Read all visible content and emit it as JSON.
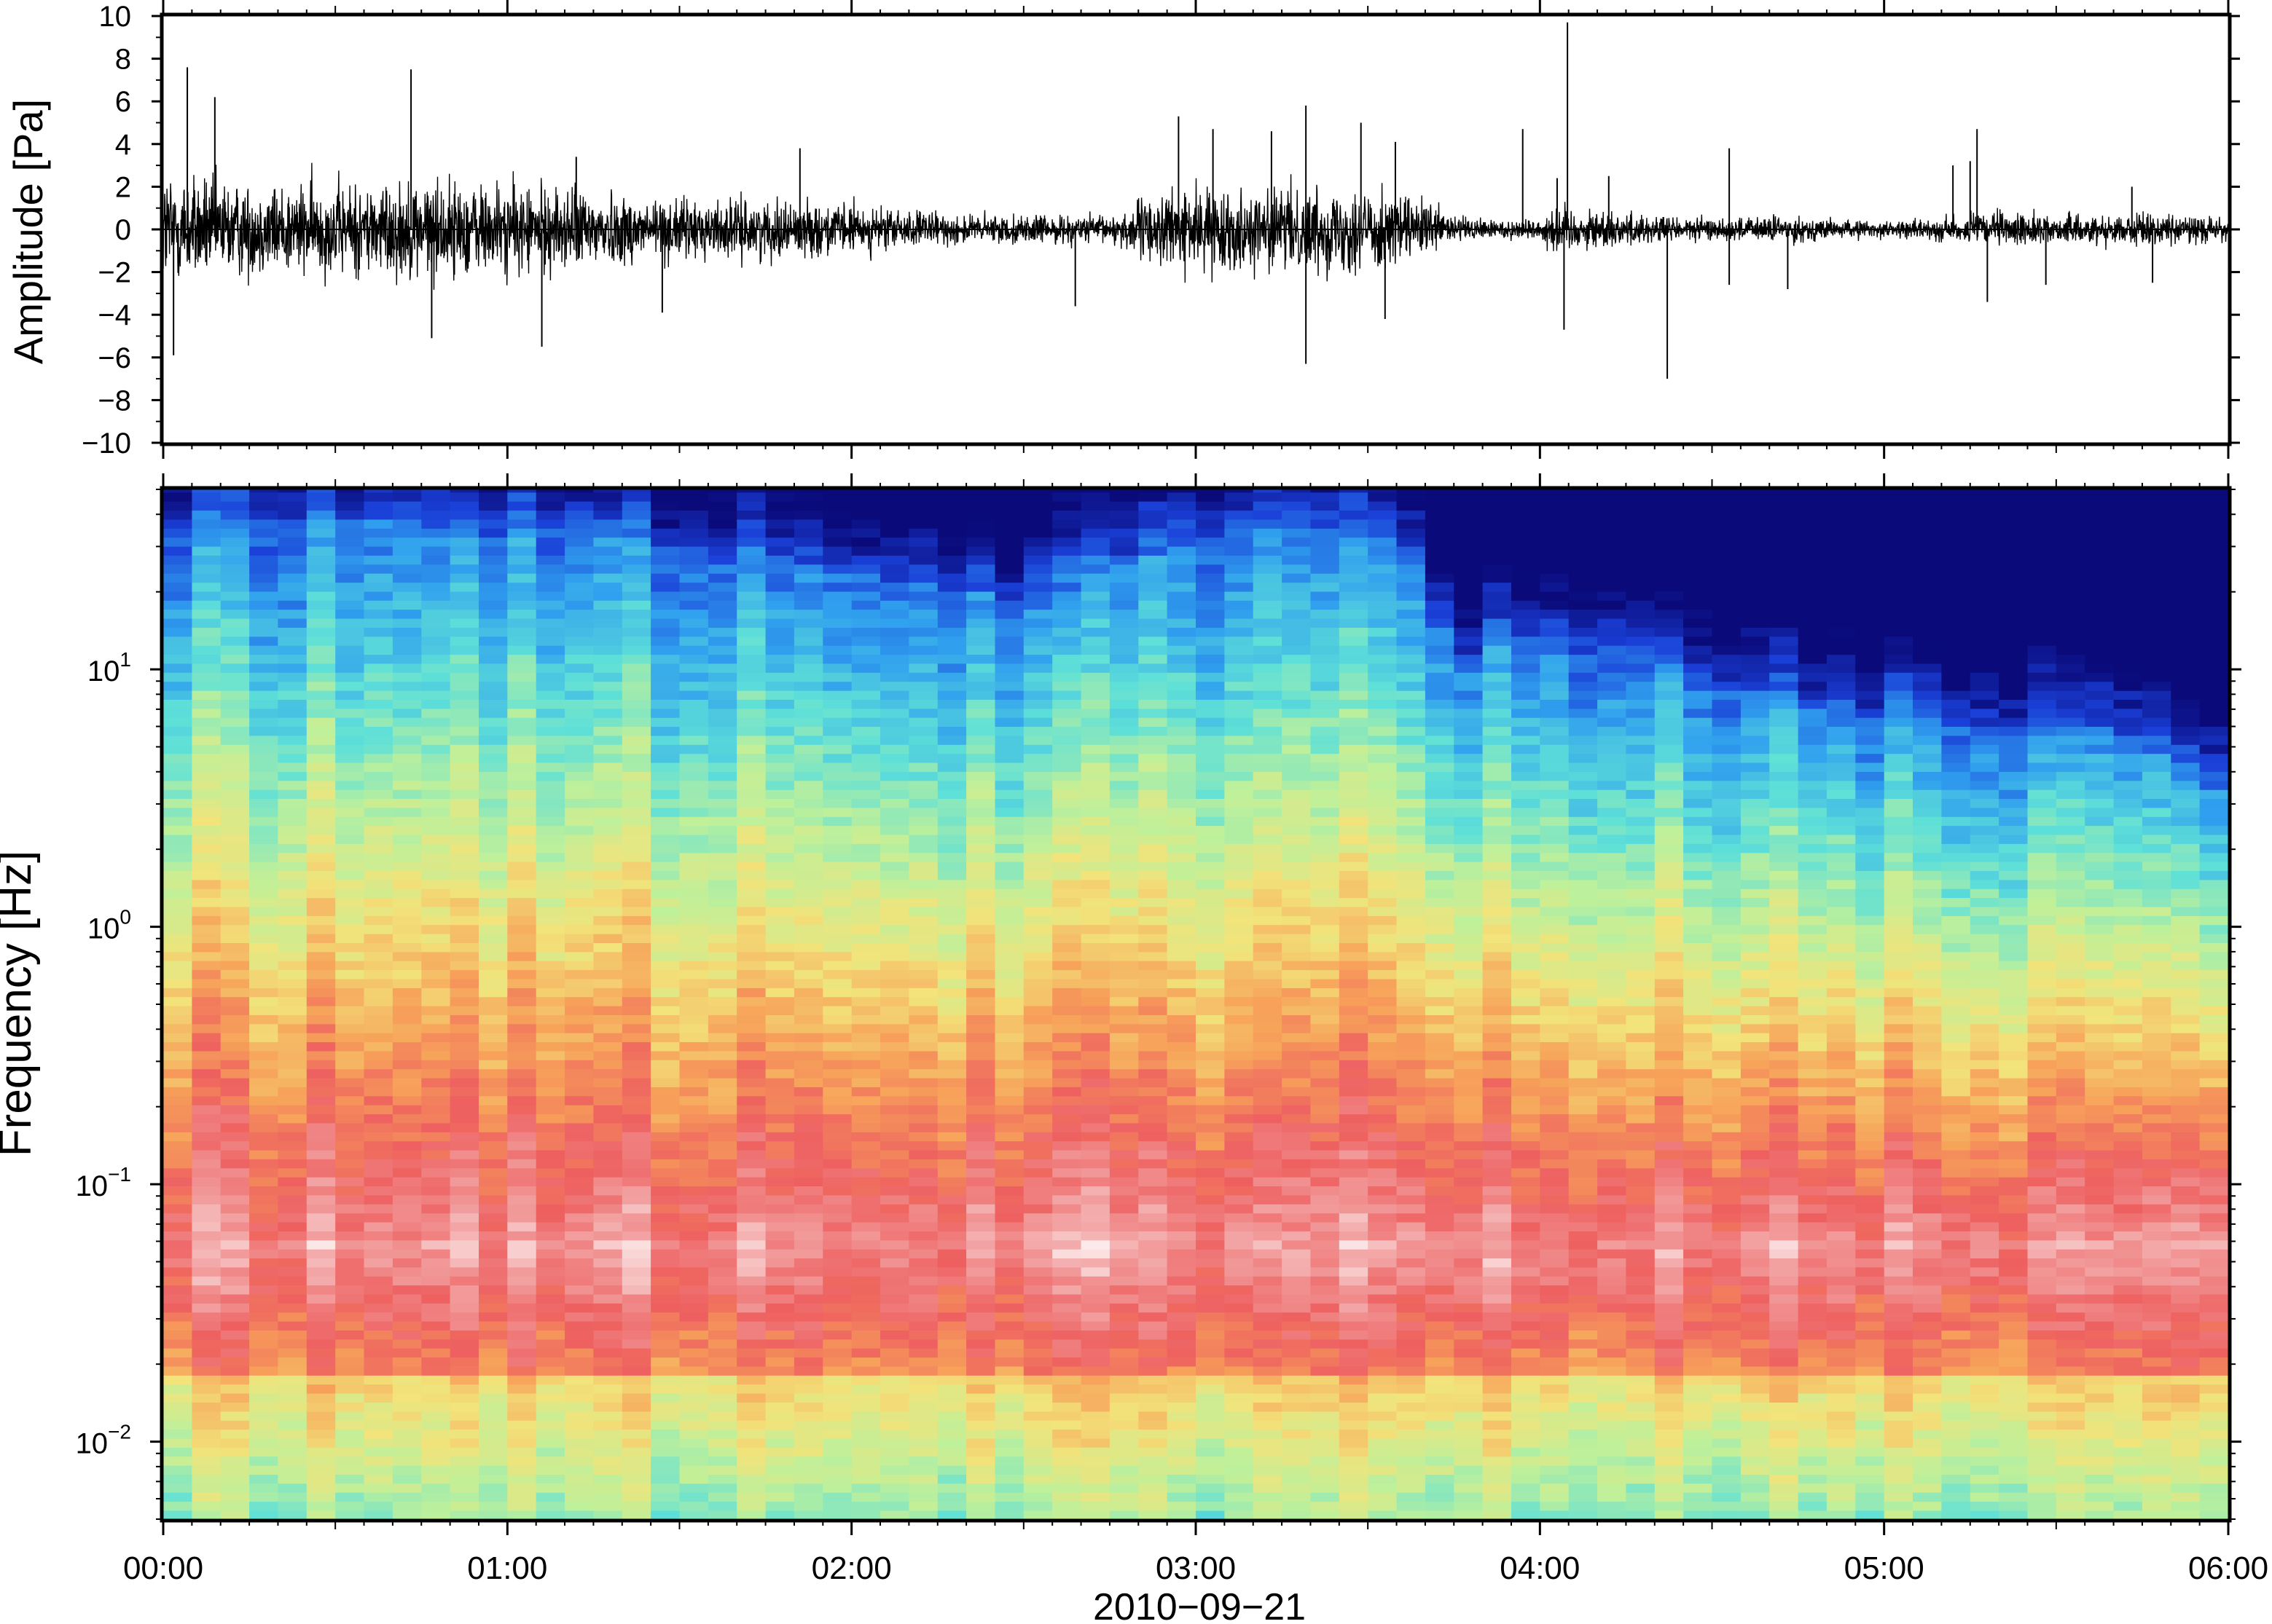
{
  "chart_data": [
    {
      "id": "waveform",
      "type": "line",
      "ylabel": "Amplitude [Pa]",
      "ylim": [
        -10,
        10
      ],
      "y_ticks": [
        10,
        8,
        6,
        4,
        2,
        0,
        -2,
        -4,
        -6,
        -8,
        -10
      ],
      "y_tick_labels": [
        "10",
        "8",
        "6",
        "4",
        "2",
        "0",
        "−2",
        "−4",
        "−6",
        "−8",
        "−10"
      ],
      "line_color": "#000000",
      "x_range_hours": [
        0,
        6
      ],
      "envelope": {
        "hours": [
          0.0,
          0.1,
          0.25,
          0.5,
          0.75,
          1.0,
          1.25,
          1.5,
          1.75,
          2.0,
          2.25,
          2.5,
          2.75,
          2.9,
          3.1,
          3.3,
          3.5,
          3.65,
          3.8,
          4.0,
          4.05,
          4.1,
          4.3,
          4.5,
          4.7,
          4.9,
          5.1,
          5.3,
          5.5,
          5.7,
          5.9,
          6.0
        ],
        "amplitude": [
          3.5,
          3.0,
          2.6,
          2.6,
          2.8,
          2.6,
          2.2,
          1.7,
          1.6,
          1.4,
          0.9,
          0.8,
          0.8,
          2.2,
          2.2,
          2.3,
          2.5,
          1.6,
          0.6,
          0.6,
          1.5,
          1.2,
          0.9,
          0.6,
          0.8,
          0.5,
          0.5,
          1.0,
          0.8,
          0.9,
          0.8,
          0.6
        ]
      },
      "spikes": [
        {
          "hour": 0.07,
          "value": 7.6
        },
        {
          "hour": 0.15,
          "value": 6.2
        },
        {
          "hour": 0.03,
          "value": -5.9
        },
        {
          "hour": 0.72,
          "value": 7.5
        },
        {
          "hour": 0.78,
          "value": -5.1
        },
        {
          "hour": 1.1,
          "value": -5.5
        },
        {
          "hour": 1.2,
          "value": 3.4
        },
        {
          "hour": 1.45,
          "value": -3.9
        },
        {
          "hour": 1.85,
          "value": 3.8
        },
        {
          "hour": 2.65,
          "value": -3.6
        },
        {
          "hour": 2.95,
          "value": 5.3
        },
        {
          "hour": 3.05,
          "value": 4.7
        },
        {
          "hour": 3.22,
          "value": 4.6
        },
        {
          "hour": 3.32,
          "value": 5.8
        },
        {
          "hour": 3.32,
          "value": -6.3
        },
        {
          "hour": 3.48,
          "value": 5.0
        },
        {
          "hour": 3.58,
          "value": 4.1
        },
        {
          "hour": 3.55,
          "value": -4.2
        },
        {
          "hour": 3.95,
          "value": 4.7
        },
        {
          "hour": 4.05,
          "value": 2.4
        },
        {
          "hour": 4.08,
          "value": 9.7
        },
        {
          "hour": 4.07,
          "value": -4.7
        },
        {
          "hour": 4.2,
          "value": 2.5
        },
        {
          "hour": 4.37,
          "value": -7.0
        },
        {
          "hour": 4.55,
          "value": 3.8
        },
        {
          "hour": 4.55,
          "value": -2.6
        },
        {
          "hour": 4.72,
          "value": -2.8
        },
        {
          "hour": 5.2,
          "value": 3.0
        },
        {
          "hour": 5.25,
          "value": 3.2
        },
        {
          "hour": 5.27,
          "value": 4.7
        },
        {
          "hour": 5.3,
          "value": -3.4
        },
        {
          "hour": 5.47,
          "value": -2.6
        },
        {
          "hour": 5.72,
          "value": 2.0
        },
        {
          "hour": 5.78,
          "value": -2.5
        }
      ]
    },
    {
      "id": "spectrogram",
      "type": "heatmap",
      "ylabel": "Frequency [Hz]",
      "y_scale": "log",
      "ylim": [
        0.005,
        50
      ],
      "y_ticks": [
        {
          "base": "10",
          "exp": "1",
          "value": 10
        },
        {
          "base": "10",
          "exp": "0",
          "value": 1
        },
        {
          "base": "10",
          "exp": "−1",
          "value": 0.1
        },
        {
          "base": "10",
          "exp": "−2",
          "value": 0.01
        }
      ],
      "colormap": [
        "#ffffff",
        "#f2a0a0",
        "#ee6060",
        "#f7a25a",
        "#f2e37a",
        "#bff09a",
        "#5ee0d8",
        "#30a0ee",
        "#1a40d8",
        "#0a0a7a"
      ],
      "x_range_hours": [
        0,
        6
      ],
      "x_ticks": [
        "00:00",
        "01:00",
        "02:00",
        "03:00",
        "04:00",
        "05:00",
        "06:00"
      ],
      "xlabel": "2010−09−21",
      "profile": {
        "hours": [
          0.0,
          0.5,
          1.0,
          1.5,
          2.0,
          2.5,
          2.8,
          3.0,
          3.3,
          3.6,
          3.75,
          4.0,
          4.3,
          4.5,
          4.8,
          5.0,
          5.3,
          5.6,
          5.9,
          6.0
        ],
        "blue_edge_hz": [
          40,
          38,
          36,
          30,
          24,
          18,
          25,
          35,
          34,
          30,
          10,
          14,
          12,
          9,
          7,
          7,
          6,
          6,
          4,
          3
        ]
      }
    }
  ]
}
